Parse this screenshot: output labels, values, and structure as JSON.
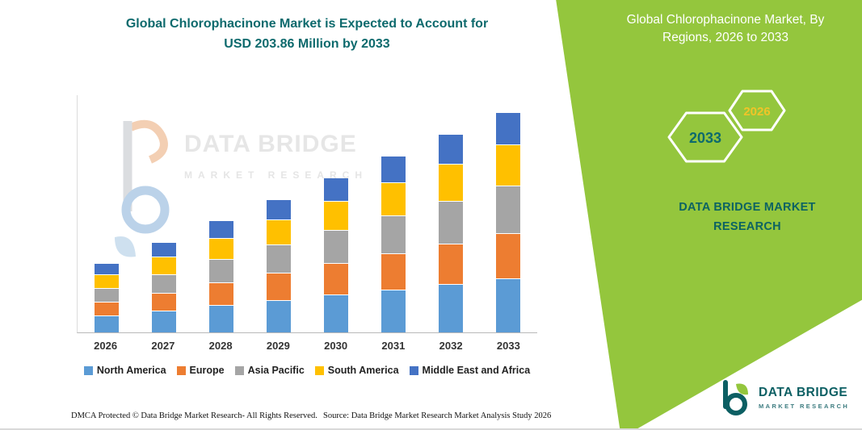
{
  "title": {
    "line1": "Global Chlorophacinone Market is Expected to Account for",
    "line2": "USD 203.86 Million by 2033"
  },
  "side_panel": {
    "title_line1": "Global Chlorophacinone Market, By",
    "title_line2": "Regions, 2026 to 2033",
    "badge_back": "2033",
    "badge_front": "2026",
    "brand": "DATA BRIDGE MARKET RESEARCH",
    "green": "#94c63d",
    "teal": "#0d6a6d",
    "badge_front_color": "#f1c428"
  },
  "watermark": {
    "line1": "DATA BRIDGE",
    "line2": "MARKET RESEARCH"
  },
  "footer": {
    "left": "DMCA Protected © Data Bridge Market Research- All Rights Reserved.",
    "right": "Source: Data Bridge Market Research  Market Analysis Study 2026"
  },
  "logo": {
    "name": "DATA BRIDGE",
    "sub": "MARKET RESEARCH"
  },
  "chart_data": {
    "type": "bar",
    "stacked": true,
    "title": "Global Chlorophacinone Market is Expected to Account for USD 203.86 Million by 2033",
    "xlabel": "",
    "ylabel": "",
    "ylim": [
      0,
      225
    ],
    "grid": false,
    "legend_position": "bottom",
    "categories": [
      "2026",
      "2027",
      "2028",
      "2029",
      "2030",
      "2031",
      "2032",
      "2033"
    ],
    "series": [
      {
        "name": "North America",
        "color": "#5B9BD5",
        "values": [
          15.0,
          20.0,
          25.0,
          30.0,
          35.0,
          40.0,
          45.0,
          50.0
        ]
      },
      {
        "name": "Europe",
        "color": "#ED7D31",
        "values": [
          12.0,
          16.3,
          20.6,
          24.9,
          29.1,
          33.4,
          37.7,
          42.0
        ]
      },
      {
        "name": "Asia Pacific",
        "color": "#A5A5A5",
        "values": [
          12.0,
          16.6,
          21.1,
          25.7,
          30.3,
          34.9,
          39.4,
          44.0
        ]
      },
      {
        "name": "South America",
        "color": "#FFC000",
        "values": [
          12.0,
          15.7,
          19.4,
          23.1,
          26.9,
          30.6,
          34.3,
          38.0
        ]
      },
      {
        "name": "Middle East and Africa",
        "color": "#4472C4",
        "values": [
          10.0,
          12.9,
          15.7,
          18.6,
          21.4,
          24.3,
          27.1,
          30.0
        ]
      }
    ],
    "totals": [
      61.0,
      81.5,
      101.8,
      122.3,
      142.7,
      163.2,
      183.5,
      203.86
    ]
  }
}
